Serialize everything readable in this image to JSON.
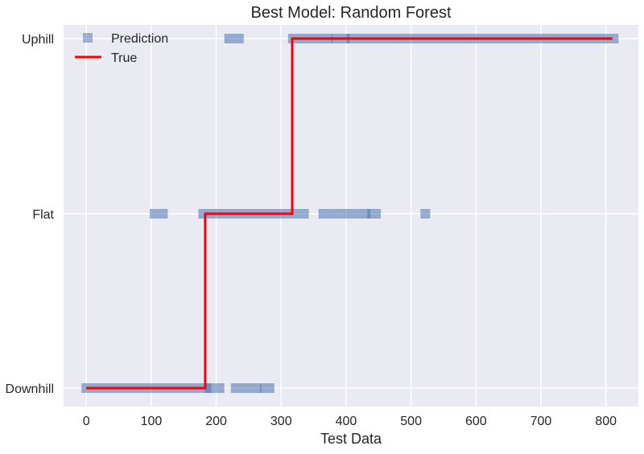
{
  "chart_data": {
    "type": "scatter",
    "title": "Best Model: Random Forest",
    "xlabel": "Test Data",
    "ylabel": "",
    "xlim": [
      -35,
      850
    ],
    "xticks": [
      0,
      100,
      200,
      300,
      400,
      500,
      600,
      700,
      800
    ],
    "y_categories": [
      "Downhill",
      "Flat",
      "Uphill"
    ],
    "grid": true,
    "legend": {
      "position": "top-left"
    },
    "colors": {
      "background": "#eaeaf2",
      "grid": "#ffffff",
      "prediction": "#4c72b0",
      "true": "#ff0000",
      "text": "#262626"
    },
    "series": [
      {
        "name": "Prediction",
        "kind": "markers",
        "points": [
          {
            "x": 0,
            "x2": 185,
            "y": "Downhill"
          },
          {
            "x": 190,
            "x2": 205,
            "y": "Downhill"
          },
          {
            "x": 230,
            "x2": 262,
            "y": "Downhill"
          },
          {
            "x": 275,
            "x2": 282,
            "y": "Downhill"
          },
          {
            "x": 105,
            "x2": 118,
            "y": "Flat"
          },
          {
            "x": 180,
            "x2": 335,
            "y": "Flat"
          },
          {
            "x": 365,
            "x2": 430,
            "y": "Flat"
          },
          {
            "x": 440,
            "x2": 446,
            "y": "Flat"
          },
          {
            "x": 522,
            "x2": 522,
            "y": "Flat"
          },
          {
            "x": 220,
            "x2": 235,
            "y": "Uphill"
          },
          {
            "x": 318,
            "x2": 372,
            "y": "Uphill"
          },
          {
            "x": 385,
            "x2": 398,
            "y": "Uphill"
          },
          {
            "x": 408,
            "x2": 812,
            "y": "Uphill"
          }
        ]
      },
      {
        "name": "True",
        "kind": "step-line",
        "points": [
          {
            "x": 0,
            "y": "Downhill"
          },
          {
            "x": 183,
            "y": "Downhill"
          },
          {
            "x": 183,
            "y": "Flat"
          },
          {
            "x": 317,
            "y": "Flat"
          },
          {
            "x": 317,
            "y": "Uphill"
          },
          {
            "x": 810,
            "y": "Uphill"
          }
        ]
      }
    ]
  }
}
